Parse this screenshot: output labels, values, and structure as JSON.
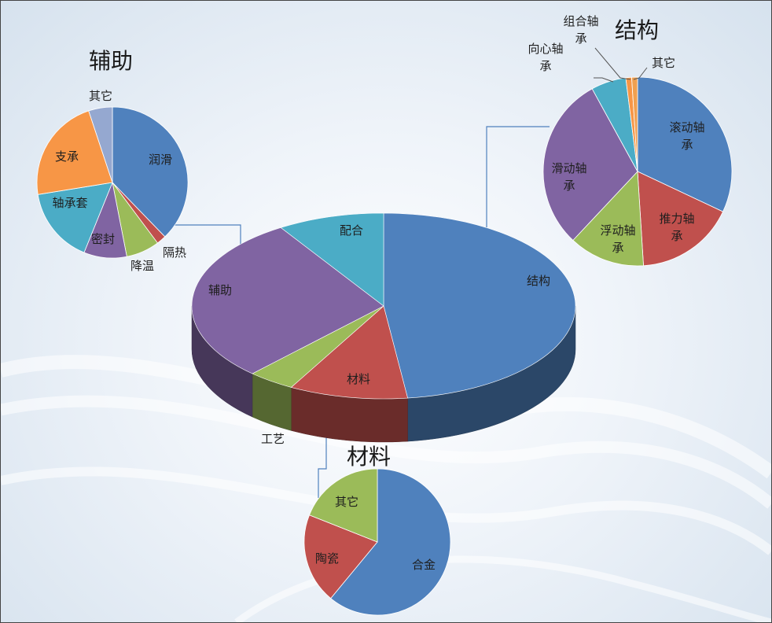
{
  "chart_data": [
    {
      "type": "pie",
      "title": "",
      "labels": [
        "结构",
        "材料",
        "工艺",
        "辅助",
        "配合"
      ],
      "values": [
        48,
        10,
        4,
        29,
        9
      ],
      "colors": [
        "#4f81bd",
        "#c0504d",
        "#9bbb59",
        "#8064a2",
        "#4bacc6"
      ]
    },
    {
      "type": "pie",
      "title": "辅助",
      "labels": [
        "润滑",
        "隔热",
        "降温",
        "密封",
        "轴承套",
        "支承",
        "其它"
      ],
      "values": [
        37,
        2,
        7,
        9,
        16,
        22,
        5
      ],
      "colors": [
        "#4f81bd",
        "#c0504d",
        "#9bbb59",
        "#8064a2",
        "#4bacc6",
        "#f79646",
        "#95a8d0"
      ]
    },
    {
      "type": "pie",
      "title": "结构",
      "labels": [
        "滚动轴承",
        "推力轴承",
        "浮动轴承",
        "滑动轴承",
        "向心轴承",
        "组合轴承",
        "其它"
      ],
      "values": [
        32,
        17,
        13,
        30,
        6,
        1,
        1
      ],
      "colors": [
        "#4f81bd",
        "#c0504d",
        "#9bbb59",
        "#8064a2",
        "#4bacc6",
        "#f79646",
        "#f0a050"
      ]
    },
    {
      "type": "pie",
      "title": "材料",
      "labels": [
        "合金",
        "陶瓷",
        "其它"
      ],
      "values": [
        61,
        20,
        19
      ],
      "colors": [
        "#4f81bd",
        "#c0504d",
        "#9bbb59"
      ]
    }
  ]
}
